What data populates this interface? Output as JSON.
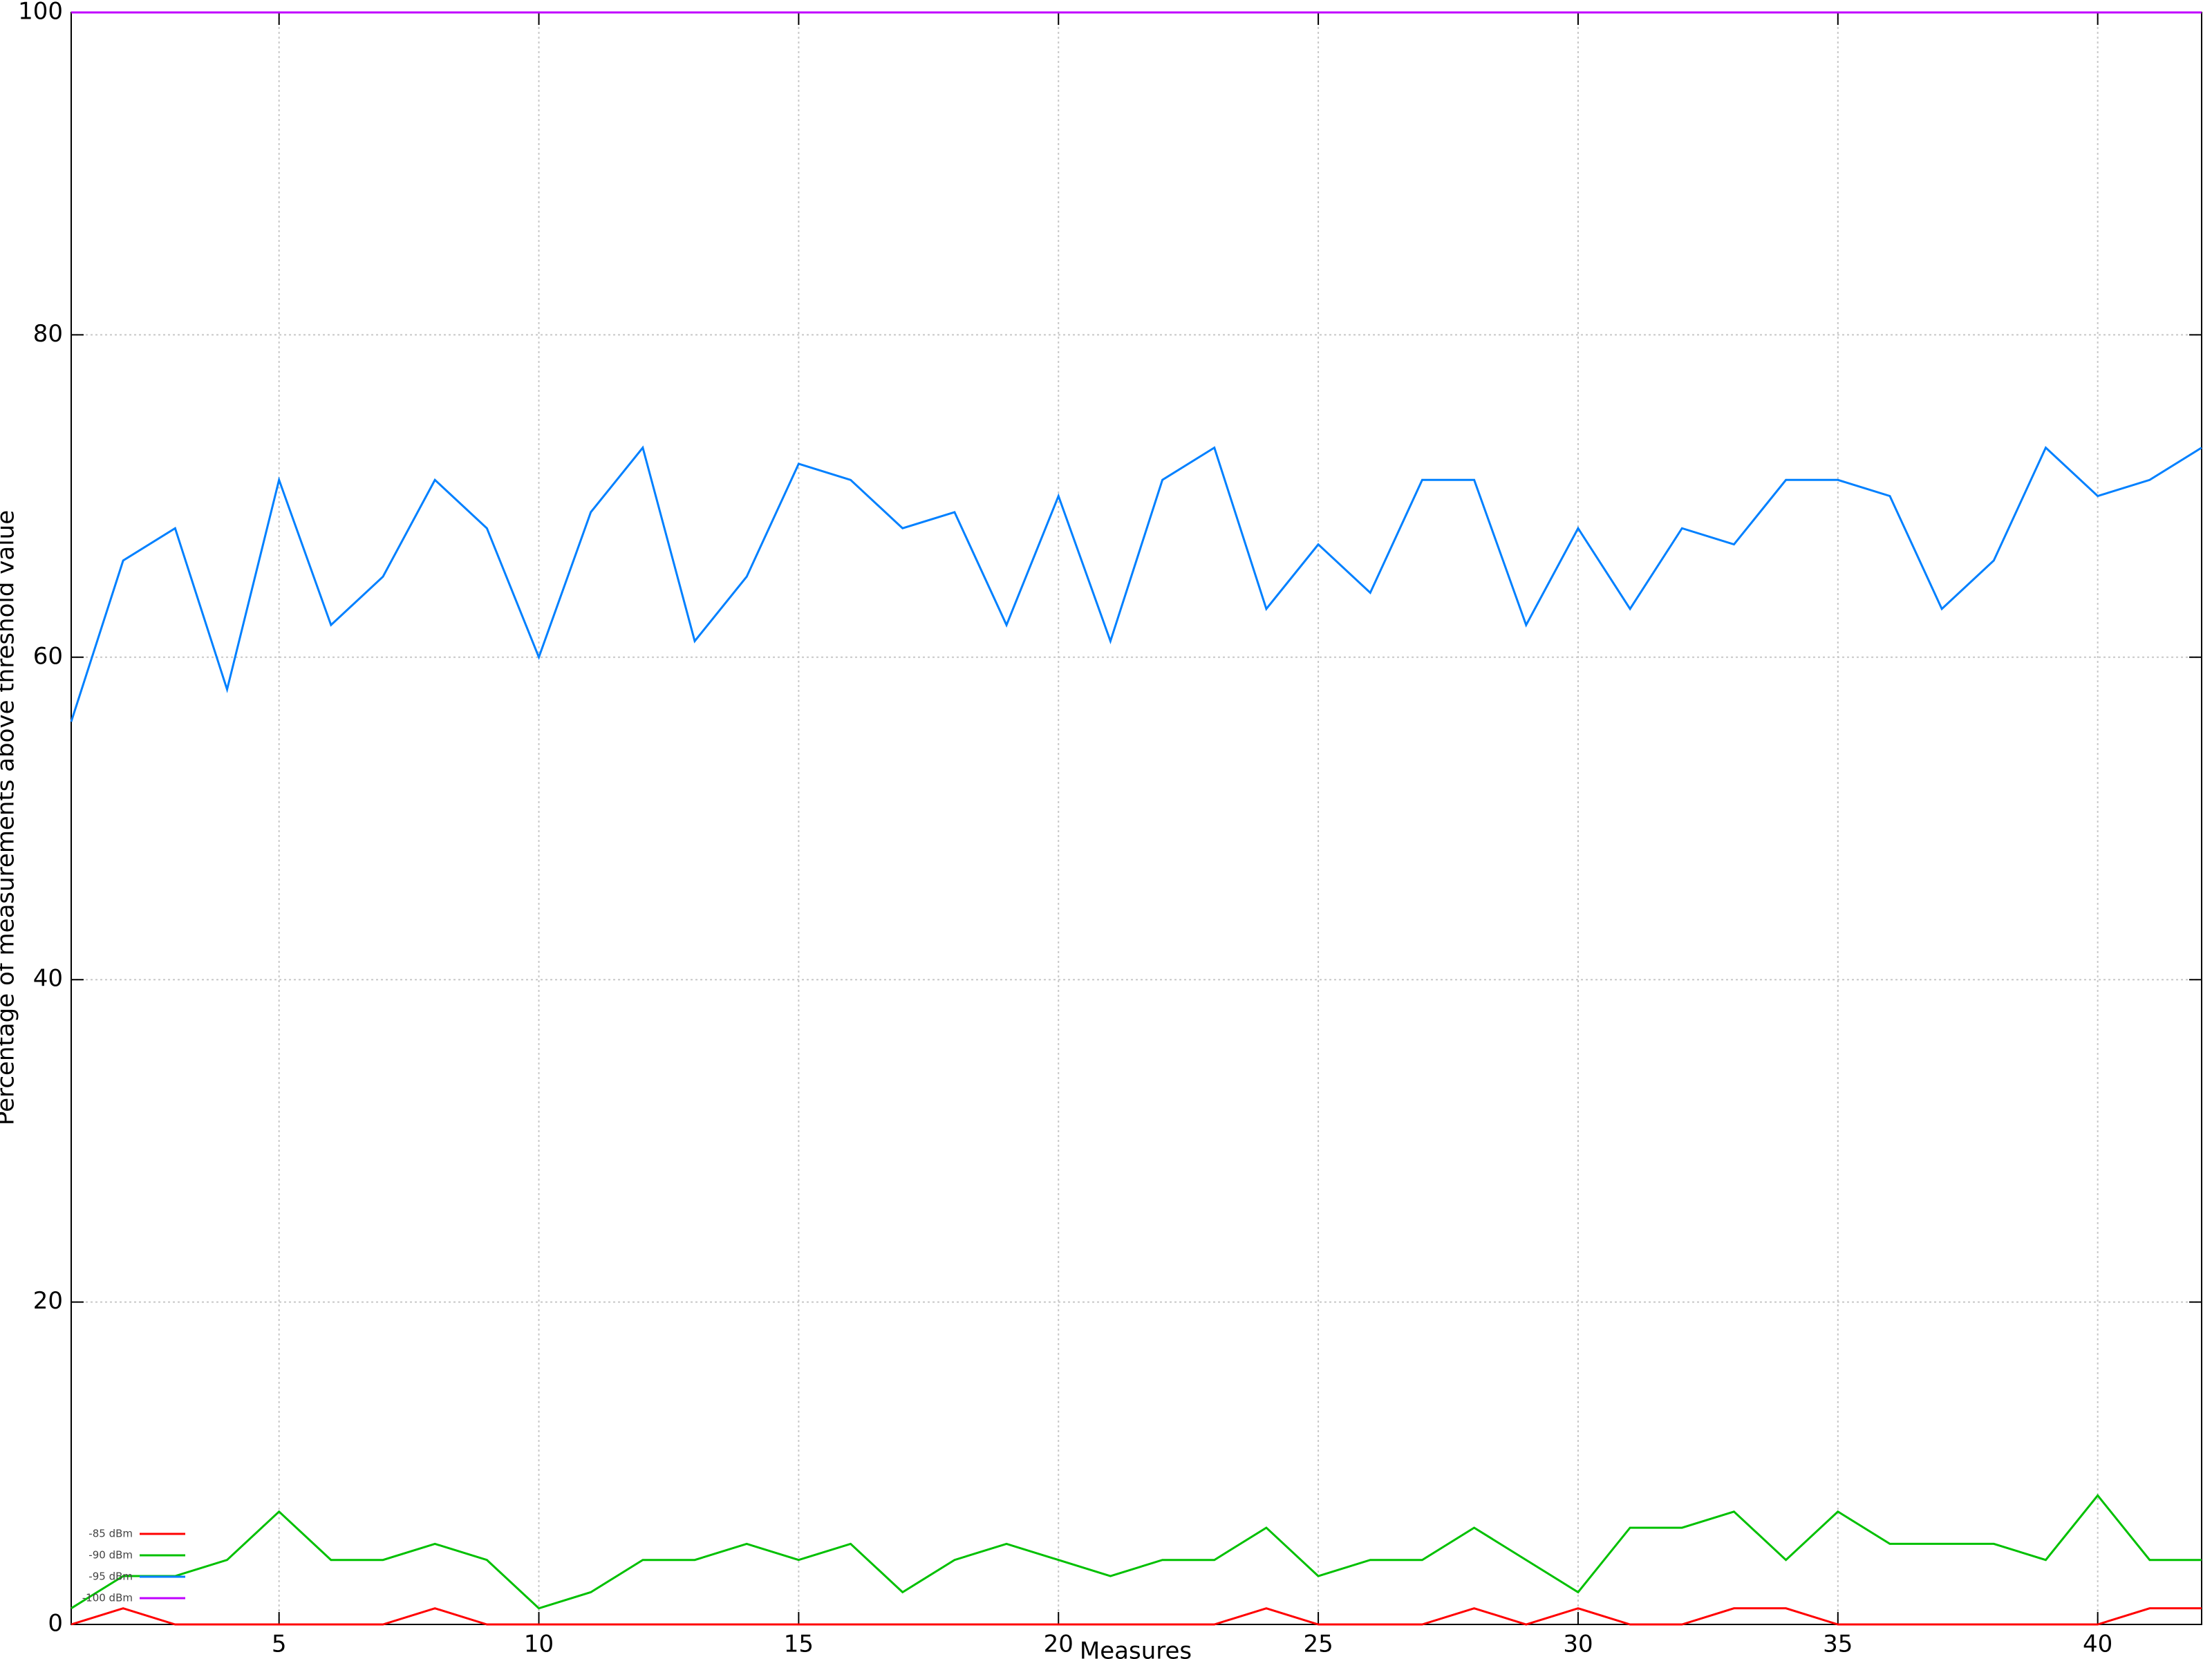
{
  "chart_data": {
    "type": "line",
    "x_label": "Measures",
    "y_label": "Percentage of measurements above threshold value",
    "x": [
      1,
      2,
      3,
      4,
      5,
      6,
      7,
      8,
      9,
      10,
      11,
      12,
      13,
      14,
      15,
      16,
      17,
      18,
      19,
      20,
      21,
      22,
      23,
      24,
      25,
      26,
      27,
      28,
      29,
      30,
      31,
      32,
      33,
      34,
      35,
      36,
      37,
      38,
      39,
      40,
      41,
      42
    ],
    "series": [
      {
        "name": "-85 dBm",
        "color": "#ff0000",
        "values": [
          0,
          1,
          0,
          0,
          0,
          0,
          0,
          1,
          0,
          0,
          0,
          0,
          0,
          0,
          0,
          0,
          0,
          0,
          0,
          0,
          0,
          0,
          0,
          1,
          0,
          0,
          0,
          1,
          0,
          1,
          0,
          0,
          1,
          1,
          0,
          0,
          0,
          0,
          0,
          0,
          1,
          1
        ]
      },
      {
        "name": "-90 dBm",
        "color": "#00c000",
        "values": [
          1,
          3,
          3,
          4,
          7,
          4,
          4,
          5,
          4,
          1,
          2,
          4,
          4,
          5,
          4,
          5,
          2,
          4,
          5,
          4,
          3,
          4,
          4,
          6,
          3,
          4,
          4,
          6,
          4,
          2,
          6,
          6,
          7,
          4,
          7,
          5,
          5,
          5,
          4,
          8,
          4,
          4
        ]
      },
      {
        "name": "-95 dBm",
        "color": "#0080ff",
        "values": [
          56,
          66,
          68,
          58,
          71,
          62,
          65,
          71,
          68,
          60,
          69,
          73,
          61,
          65,
          72,
          71,
          68,
          69,
          62,
          70,
          61,
          71,
          73,
          63,
          67,
          64,
          71,
          71,
          62,
          68,
          63,
          68,
          67,
          71,
          71,
          70,
          63,
          66,
          73,
          70,
          71,
          73
        ]
      },
      {
        "name": "-100 dBm",
        "color": "#c000ff",
        "values": [
          100,
          100,
          100,
          100,
          100,
          100,
          100,
          100,
          100,
          100,
          100,
          100,
          100,
          100,
          100,
          100,
          100,
          100,
          100,
          100,
          100,
          100,
          100,
          100,
          100,
          100,
          100,
          100,
          100,
          100,
          100,
          100,
          100,
          100,
          100,
          100,
          100,
          100,
          100,
          100,
          100,
          100
        ]
      }
    ],
    "xlim": [
      1,
      42
    ],
    "xticks": [
      5,
      10,
      15,
      20,
      25,
      30,
      35,
      40
    ],
    "ylim": [
      0,
      100
    ],
    "yticks": [
      0,
      20,
      40,
      60,
      80,
      100
    ],
    "grid": true,
    "legend": "lower left"
  }
}
